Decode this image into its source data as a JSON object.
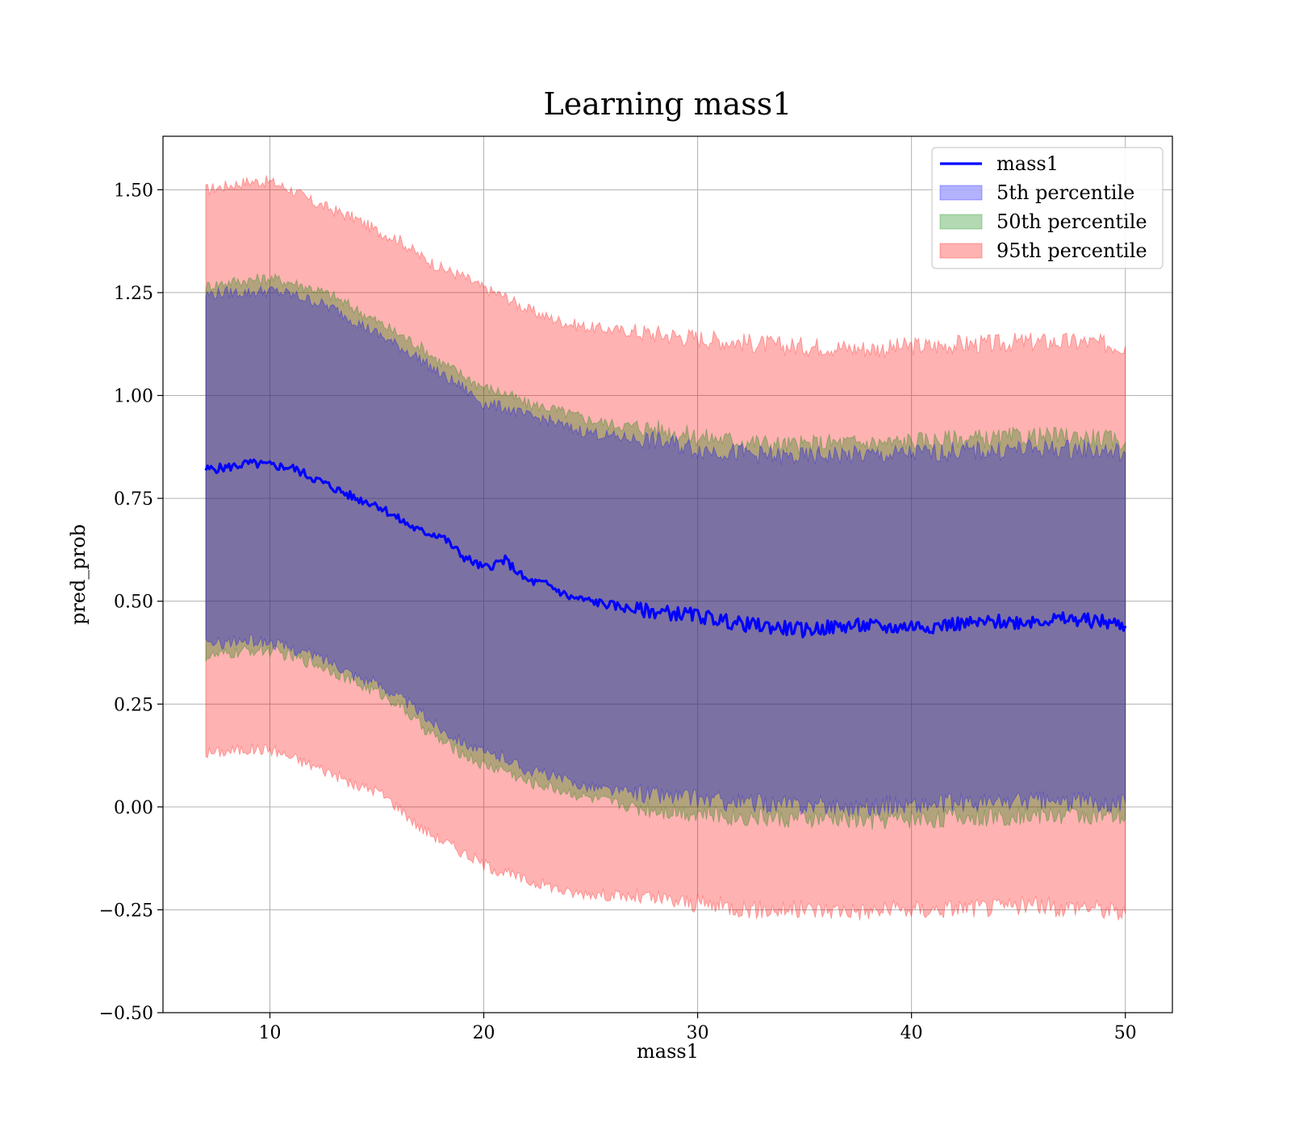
{
  "chart_data": {
    "type": "line",
    "title": "Learning mass1",
    "xlabel": "mass1",
    "ylabel": "pred_prob",
    "xlim": [
      5,
      52.2
    ],
    "ylim": [
      -0.5,
      1.63
    ],
    "xticks": [
      10,
      20,
      30,
      40,
      50
    ],
    "xtick_labels": [
      "10",
      "20",
      "30",
      "40",
      "50"
    ],
    "yticks": [
      -0.5,
      -0.25,
      0.0,
      0.25,
      0.5,
      0.75,
      1.0,
      1.25,
      1.5
    ],
    "ytick_labels": [
      "−0.50",
      "−0.25",
      "0.00",
      "0.25",
      "0.50",
      "0.75",
      "1.00",
      "1.25",
      "1.50"
    ],
    "grid": true,
    "legend_position": "top-right",
    "legend": [
      "mass1",
      "5th percentile",
      "50th percentile",
      "95th percentile"
    ],
    "colors": {
      "line": "#0000ff",
      "p5_fill": "#0000ff",
      "p50_fill": "#008000",
      "p95_fill": "#ff0000"
    },
    "x": [
      7,
      8,
      9,
      10,
      11,
      12,
      13,
      14,
      15,
      16,
      17,
      18,
      19,
      20,
      21,
      22,
      23,
      24,
      25,
      26,
      27,
      28,
      29,
      30,
      31,
      32,
      33,
      34,
      35,
      36,
      37,
      38,
      39,
      40,
      41,
      42,
      43,
      44,
      45,
      46,
      47,
      48,
      49,
      50
    ],
    "series": [
      {
        "name": "mass1",
        "values": [
          0.82,
          0.825,
          0.835,
          0.83,
          0.825,
          0.8,
          0.775,
          0.75,
          0.735,
          0.7,
          0.67,
          0.66,
          0.61,
          0.58,
          0.6,
          0.55,
          0.54,
          0.51,
          0.5,
          0.49,
          0.48,
          0.475,
          0.47,
          0.465,
          0.455,
          0.445,
          0.44,
          0.435,
          0.43,
          0.435,
          0.44,
          0.44,
          0.435,
          0.44,
          0.44,
          0.445,
          0.445,
          0.45,
          0.45,
          0.455,
          0.455,
          0.455,
          0.45,
          0.44
        ]
      },
      {
        "name": "5th percentile",
        "lower": [
          0.395,
          0.4,
          0.405,
          0.4,
          0.385,
          0.37,
          0.35,
          0.32,
          0.3,
          0.27,
          0.23,
          0.19,
          0.16,
          0.13,
          0.12,
          0.09,
          0.08,
          0.06,
          0.05,
          0.04,
          0.035,
          0.03,
          0.025,
          0.02,
          0.015,
          0.01,
          0.01,
          0.005,
          0.005,
          0.005,
          0.0,
          0.0,
          0.005,
          0.005,
          0.005,
          0.01,
          0.01,
          0.01,
          0.015,
          0.015,
          0.01,
          0.015,
          0.01,
          0.01
        ],
        "upper": [
          1.245,
          1.25,
          1.25,
          1.255,
          1.245,
          1.23,
          1.21,
          1.18,
          1.15,
          1.12,
          1.09,
          1.05,
          1.02,
          0.98,
          0.97,
          0.95,
          0.94,
          0.92,
          0.91,
          0.9,
          0.895,
          0.89,
          0.88,
          0.87,
          0.865,
          0.86,
          0.855,
          0.85,
          0.85,
          0.855,
          0.855,
          0.855,
          0.855,
          0.86,
          0.86,
          0.865,
          0.865,
          0.865,
          0.87,
          0.87,
          0.87,
          0.87,
          0.865,
          0.86
        ]
      },
      {
        "name": "50th percentile",
        "lower": [
          0.365,
          0.37,
          0.38,
          0.38,
          0.365,
          0.35,
          0.33,
          0.3,
          0.28,
          0.25,
          0.2,
          0.16,
          0.13,
          0.1,
          0.09,
          0.06,
          0.05,
          0.035,
          0.02,
          0.01,
          0.0,
          -0.005,
          -0.01,
          -0.015,
          -0.02,
          -0.025,
          -0.025,
          -0.03,
          -0.03,
          -0.03,
          -0.03,
          -0.035,
          -0.03,
          -0.03,
          -0.03,
          -0.025,
          -0.025,
          -0.025,
          -0.02,
          -0.02,
          -0.02,
          -0.02,
          -0.025,
          -0.03
        ],
        "upper": [
          1.265,
          1.275,
          1.28,
          1.285,
          1.275,
          1.26,
          1.24,
          1.21,
          1.18,
          1.15,
          1.12,
          1.08,
          1.05,
          1.02,
          1.005,
          0.98,
          0.97,
          0.955,
          0.94,
          0.93,
          0.925,
          0.92,
          0.91,
          0.9,
          0.895,
          0.89,
          0.885,
          0.88,
          0.88,
          0.885,
          0.885,
          0.885,
          0.885,
          0.89,
          0.89,
          0.895,
          0.895,
          0.895,
          0.9,
          0.9,
          0.9,
          0.9,
          0.895,
          0.885
        ]
      },
      {
        "name": "95th percentile",
        "lower": [
          0.13,
          0.135,
          0.14,
          0.14,
          0.12,
          0.1,
          0.08,
          0.05,
          0.04,
          0.0,
          -0.05,
          -0.08,
          -0.11,
          -0.14,
          -0.16,
          -0.18,
          -0.19,
          -0.21,
          -0.21,
          -0.215,
          -0.22,
          -0.225,
          -0.23,
          -0.235,
          -0.24,
          -0.245,
          -0.25,
          -0.25,
          -0.25,
          -0.25,
          -0.25,
          -0.255,
          -0.25,
          -0.25,
          -0.25,
          -0.245,
          -0.245,
          -0.245,
          -0.24,
          -0.24,
          -0.245,
          -0.24,
          -0.25,
          -0.26
        ],
        "upper": [
          1.5,
          1.51,
          1.52,
          1.52,
          1.5,
          1.47,
          1.45,
          1.43,
          1.4,
          1.38,
          1.34,
          1.31,
          1.29,
          1.26,
          1.24,
          1.21,
          1.19,
          1.175,
          1.165,
          1.16,
          1.155,
          1.15,
          1.145,
          1.14,
          1.135,
          1.13,
          1.125,
          1.12,
          1.12,
          1.12,
          1.115,
          1.115,
          1.115,
          1.12,
          1.12,
          1.125,
          1.125,
          1.125,
          1.13,
          1.13,
          1.13,
          1.13,
          1.125,
          1.12
        ]
      }
    ]
  }
}
